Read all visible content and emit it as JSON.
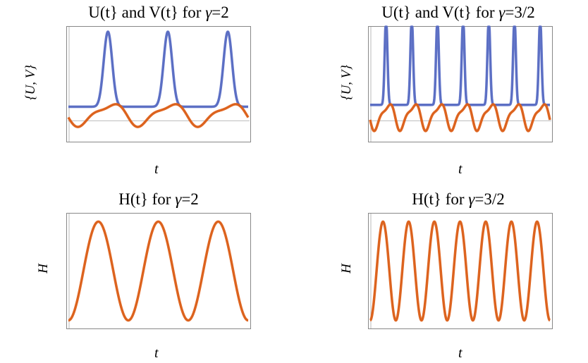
{
  "colors": {
    "u_series": "#5b6fc7",
    "v_series": "#e0621a",
    "h_series": "#e0621a",
    "frame": "#888888"
  },
  "chart_data": [
    {
      "type": "line",
      "title_prefix": "U(t} and V(t} for ",
      "title_gamma": "γ",
      "title_suffix": "=2",
      "xlabel": "t",
      "ylabel": "{U, V}",
      "gamma": 2,
      "series": [
        {
          "key": "U",
          "shape": "peaks",
          "periods": 3.0,
          "phase": 0.16,
          "baseline": 0.2,
          "peak": 1.0,
          "sharp": 5.0
        },
        {
          "key": "V",
          "shape": "skew",
          "periods": 3.0,
          "phase": 0.0,
          "mid": 0.12,
          "amp": 0.17
        }
      ]
    },
    {
      "type": "line",
      "title_prefix": "U(t} and V(t} for ",
      "title_gamma": "γ",
      "title_suffix": "=3/2",
      "xlabel": "t",
      "ylabel": "{U, V}",
      "gamma": 1.5,
      "series": [
        {
          "key": "U",
          "shape": "peaks",
          "periods": 7.0,
          "phase": 0.12,
          "baseline": 0.22,
          "peak": 1.15,
          "sharp": 9.0
        },
        {
          "key": "V",
          "shape": "skew",
          "periods": 7.0,
          "phase": 0.0,
          "mid": 0.1,
          "amp": 0.2
        }
      ]
    },
    {
      "type": "line",
      "title_prefix": "H(t} for ",
      "title_gamma": "γ",
      "title_suffix": "=2",
      "xlabel": "t",
      "ylabel": "H",
      "gamma": 2,
      "series": [
        {
          "key": "H",
          "shape": "wave",
          "periods": 3.0,
          "phase": 0.0,
          "min": 0.03,
          "max": 0.97
        }
      ]
    },
    {
      "type": "line",
      "title_prefix": "H(t} for ",
      "title_gamma": "γ",
      "title_suffix": "=3/2",
      "xlabel": "t",
      "ylabel": "H",
      "gamma": 1.5,
      "series": [
        {
          "key": "H",
          "shape": "wave",
          "periods": 7.0,
          "phase": 0.0,
          "min": 0.03,
          "max": 0.97
        }
      ]
    }
  ]
}
